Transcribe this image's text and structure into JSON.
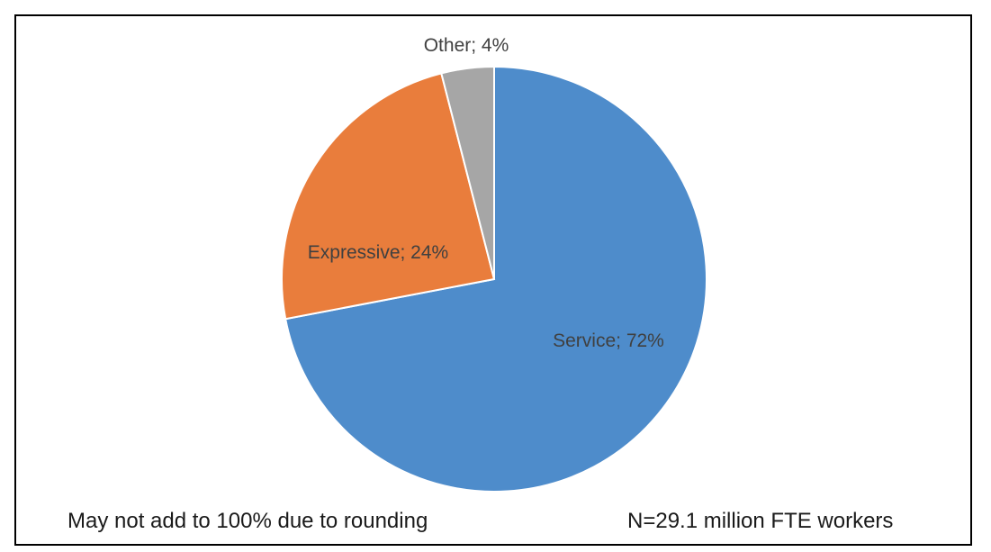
{
  "chart_data": {
    "type": "pie",
    "slices": [
      {
        "label": "Service",
        "value": 72,
        "display": "Service; 72%",
        "color": "#4e8ccb"
      },
      {
        "label": "Expressive",
        "value": 24,
        "display": "Expressive; 24%",
        "color": "#e97d3c"
      },
      {
        "label": "Other",
        "value": 4,
        "display": "Other; 4%",
        "color": "#a6a6a6"
      }
    ],
    "title": "",
    "legend": "none"
  },
  "notes": {
    "rounding": "May not add to 100% due to rounding",
    "sample": "N=29.1 million FTE workers"
  }
}
